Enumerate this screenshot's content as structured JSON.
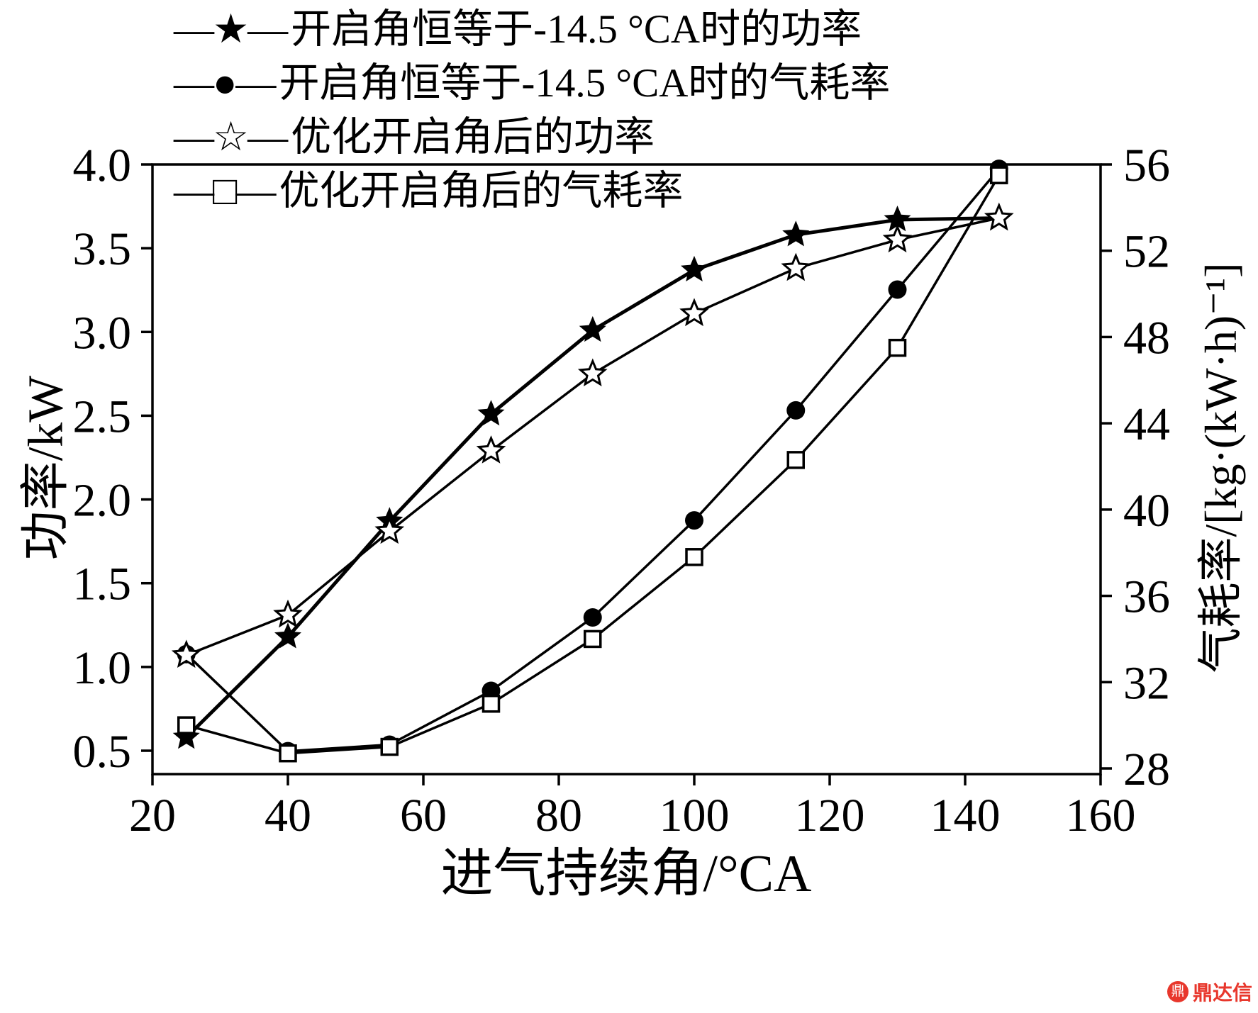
{
  "chart_data": {
    "type": "line",
    "title": "",
    "xlabel": "进气持续角/°CA",
    "ylabel_left": "功率/kW",
    "ylabel_right": "气耗率/[kg·(kW·h)⁻¹]",
    "xlim": [
      20,
      160
    ],
    "xticks": [
      20,
      40,
      60,
      80,
      100,
      120,
      140,
      160
    ],
    "ylim_left": [
      0.5,
      4.0
    ],
    "yticks_left": [
      "0.5",
      "1.0",
      "1.5",
      "2.0",
      "2.5",
      "3.0",
      "3.5",
      "4.0"
    ],
    "ylim_right": [
      28,
      56
    ],
    "yticks_right": [
      28,
      32,
      36,
      40,
      44,
      48,
      52,
      56
    ],
    "grid": false,
    "legend_position": "top-left",
    "x": [
      25,
      40,
      55,
      70,
      85,
      100,
      115,
      130,
      145
    ],
    "series": [
      {
        "name": "开启角恒等于-14.5 °CA时的功率",
        "axis": "left",
        "marker": "star-filled",
        "values": [
          0.58,
          1.18,
          1.87,
          2.51,
          3.01,
          3.37,
          3.58,
          3.67,
          3.68
        ]
      },
      {
        "name": "开启角恒等于-14.5 °CA时的气耗率",
        "axis": "right",
        "marker": "circle-filled",
        "values": [
          33.3,
          28.8,
          29.1,
          31.6,
          35.0,
          39.5,
          44.6,
          50.2,
          55.8
        ]
      },
      {
        "name": "优化开启角后的功率",
        "axis": "left",
        "marker": "star-open",
        "values": [
          1.07,
          1.31,
          1.81,
          2.29,
          2.75,
          3.11,
          3.38,
          3.55,
          3.68
        ]
      },
      {
        "name": "优化开启角后的气耗率",
        "axis": "right",
        "marker": "square-open",
        "values": [
          30.0,
          28.7,
          29.0,
          31.0,
          34.0,
          37.8,
          42.3,
          47.5,
          55.5
        ]
      }
    ]
  },
  "legend": {
    "items": [
      {
        "icon": "star-filled",
        "glyph": "—★—",
        "label": "开启角恒等于-14.5 °CA时的功率"
      },
      {
        "icon": "circle-filled",
        "glyph": "—●—",
        "label": "开启角恒等于-14.5 °CA时的气耗率"
      },
      {
        "icon": "star-open",
        "glyph": "—☆—",
        "label": "优化开启角后的功率"
      },
      {
        "icon": "square-open",
        "glyph": "—□—",
        "label": "优化开启角后的气耗率"
      }
    ]
  },
  "watermark": {
    "logo": "鼎",
    "text": "鼎达信",
    "color": "#e8372c"
  }
}
